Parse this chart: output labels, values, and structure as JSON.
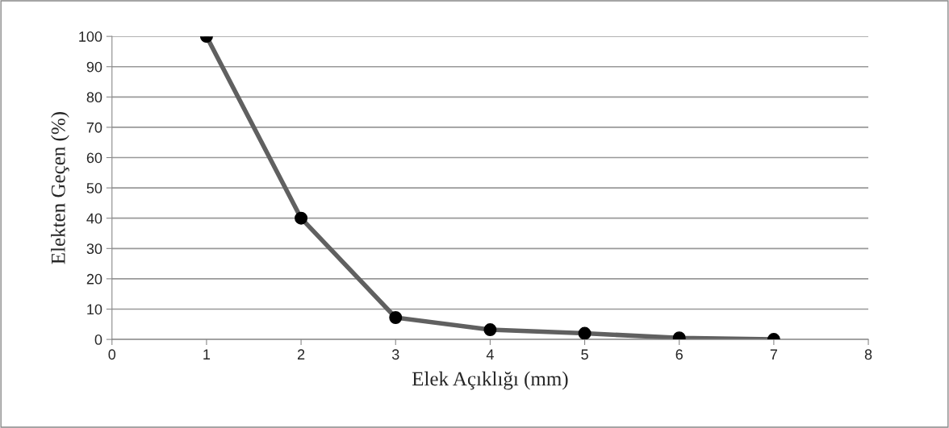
{
  "chart_data": {
    "type": "line",
    "xlabel": "Elek Açıklığı (mm)",
    "ylabel": "Elekten Geçen (%)",
    "x": [
      1,
      2,
      3,
      4,
      5,
      6,
      7
    ],
    "series": [
      {
        "color": "#606060",
        "values": [
          100,
          40,
          7.2,
          3.2,
          2.0,
          0.5,
          0
        ]
      }
    ],
    "xlim": [
      0,
      8
    ],
    "xticks": [
      0,
      1,
      2,
      3,
      4,
      5,
      6,
      7,
      8
    ],
    "ylim": [
      0,
      100
    ],
    "yticks": [
      0,
      10,
      20,
      30,
      40,
      50,
      60,
      70,
      80,
      90,
      100
    ],
    "grid": "y",
    "marker": "circle",
    "line_style": "solid"
  }
}
